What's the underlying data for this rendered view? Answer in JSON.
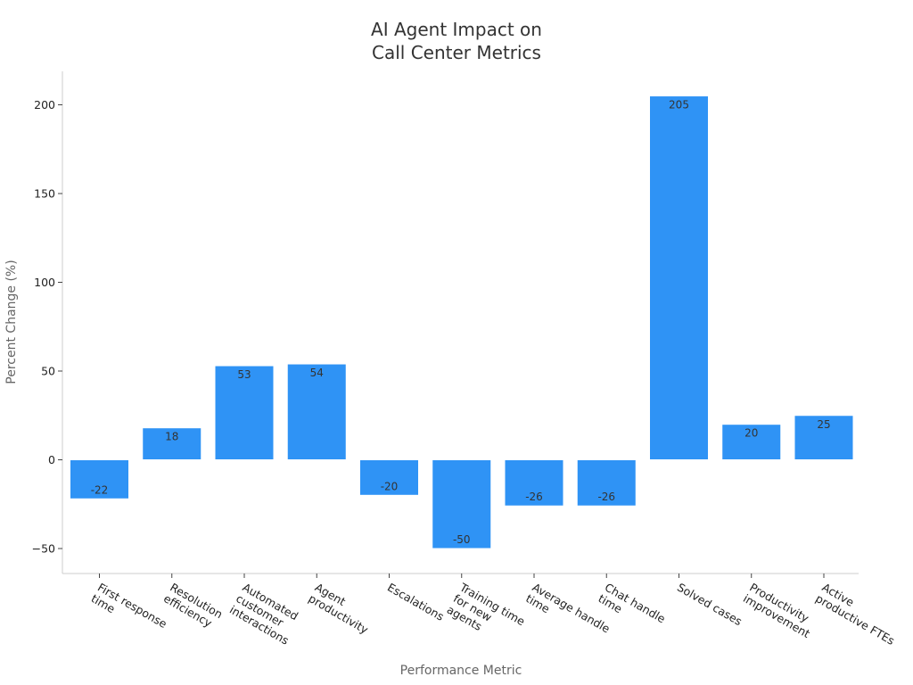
{
  "chart_data": {
    "type": "bar",
    "title": [
      "AI Agent Impact on",
      "Call Center Metrics"
    ],
    "xlabel": "Performance Metric",
    "ylabel": "Percent Change (%)",
    "ylim": [
      -65,
      218
    ],
    "yticks": [
      -50,
      0,
      50,
      100,
      150,
      200
    ],
    "ytick_labels": [
      "−50",
      "0",
      "50",
      "100",
      "150",
      "200"
    ],
    "grid": false,
    "bar_color": "#2f93f5",
    "categories": [
      [
        "First response",
        "time"
      ],
      [
        "Resolution",
        "efficiency"
      ],
      [
        "Automated",
        "customer",
        "interactions"
      ],
      [
        "Agent",
        "productivity"
      ],
      [
        "Escalations"
      ],
      [
        "Training time",
        "for new",
        "agents"
      ],
      [
        "Average handle",
        "time"
      ],
      [
        "Chat handle",
        "time"
      ],
      [
        "Solved cases"
      ],
      [
        "Productivity",
        "improvement"
      ],
      [
        "Active",
        "productive FTEs"
      ]
    ],
    "values": [
      -22,
      18,
      53,
      54,
      -20,
      -50,
      -26,
      -26,
      205,
      20,
      25
    ],
    "data_labels": [
      "-22",
      "18",
      "53",
      "54",
      "-20",
      "-50",
      "-26",
      "-26",
      "205",
      "20",
      "25"
    ]
  }
}
